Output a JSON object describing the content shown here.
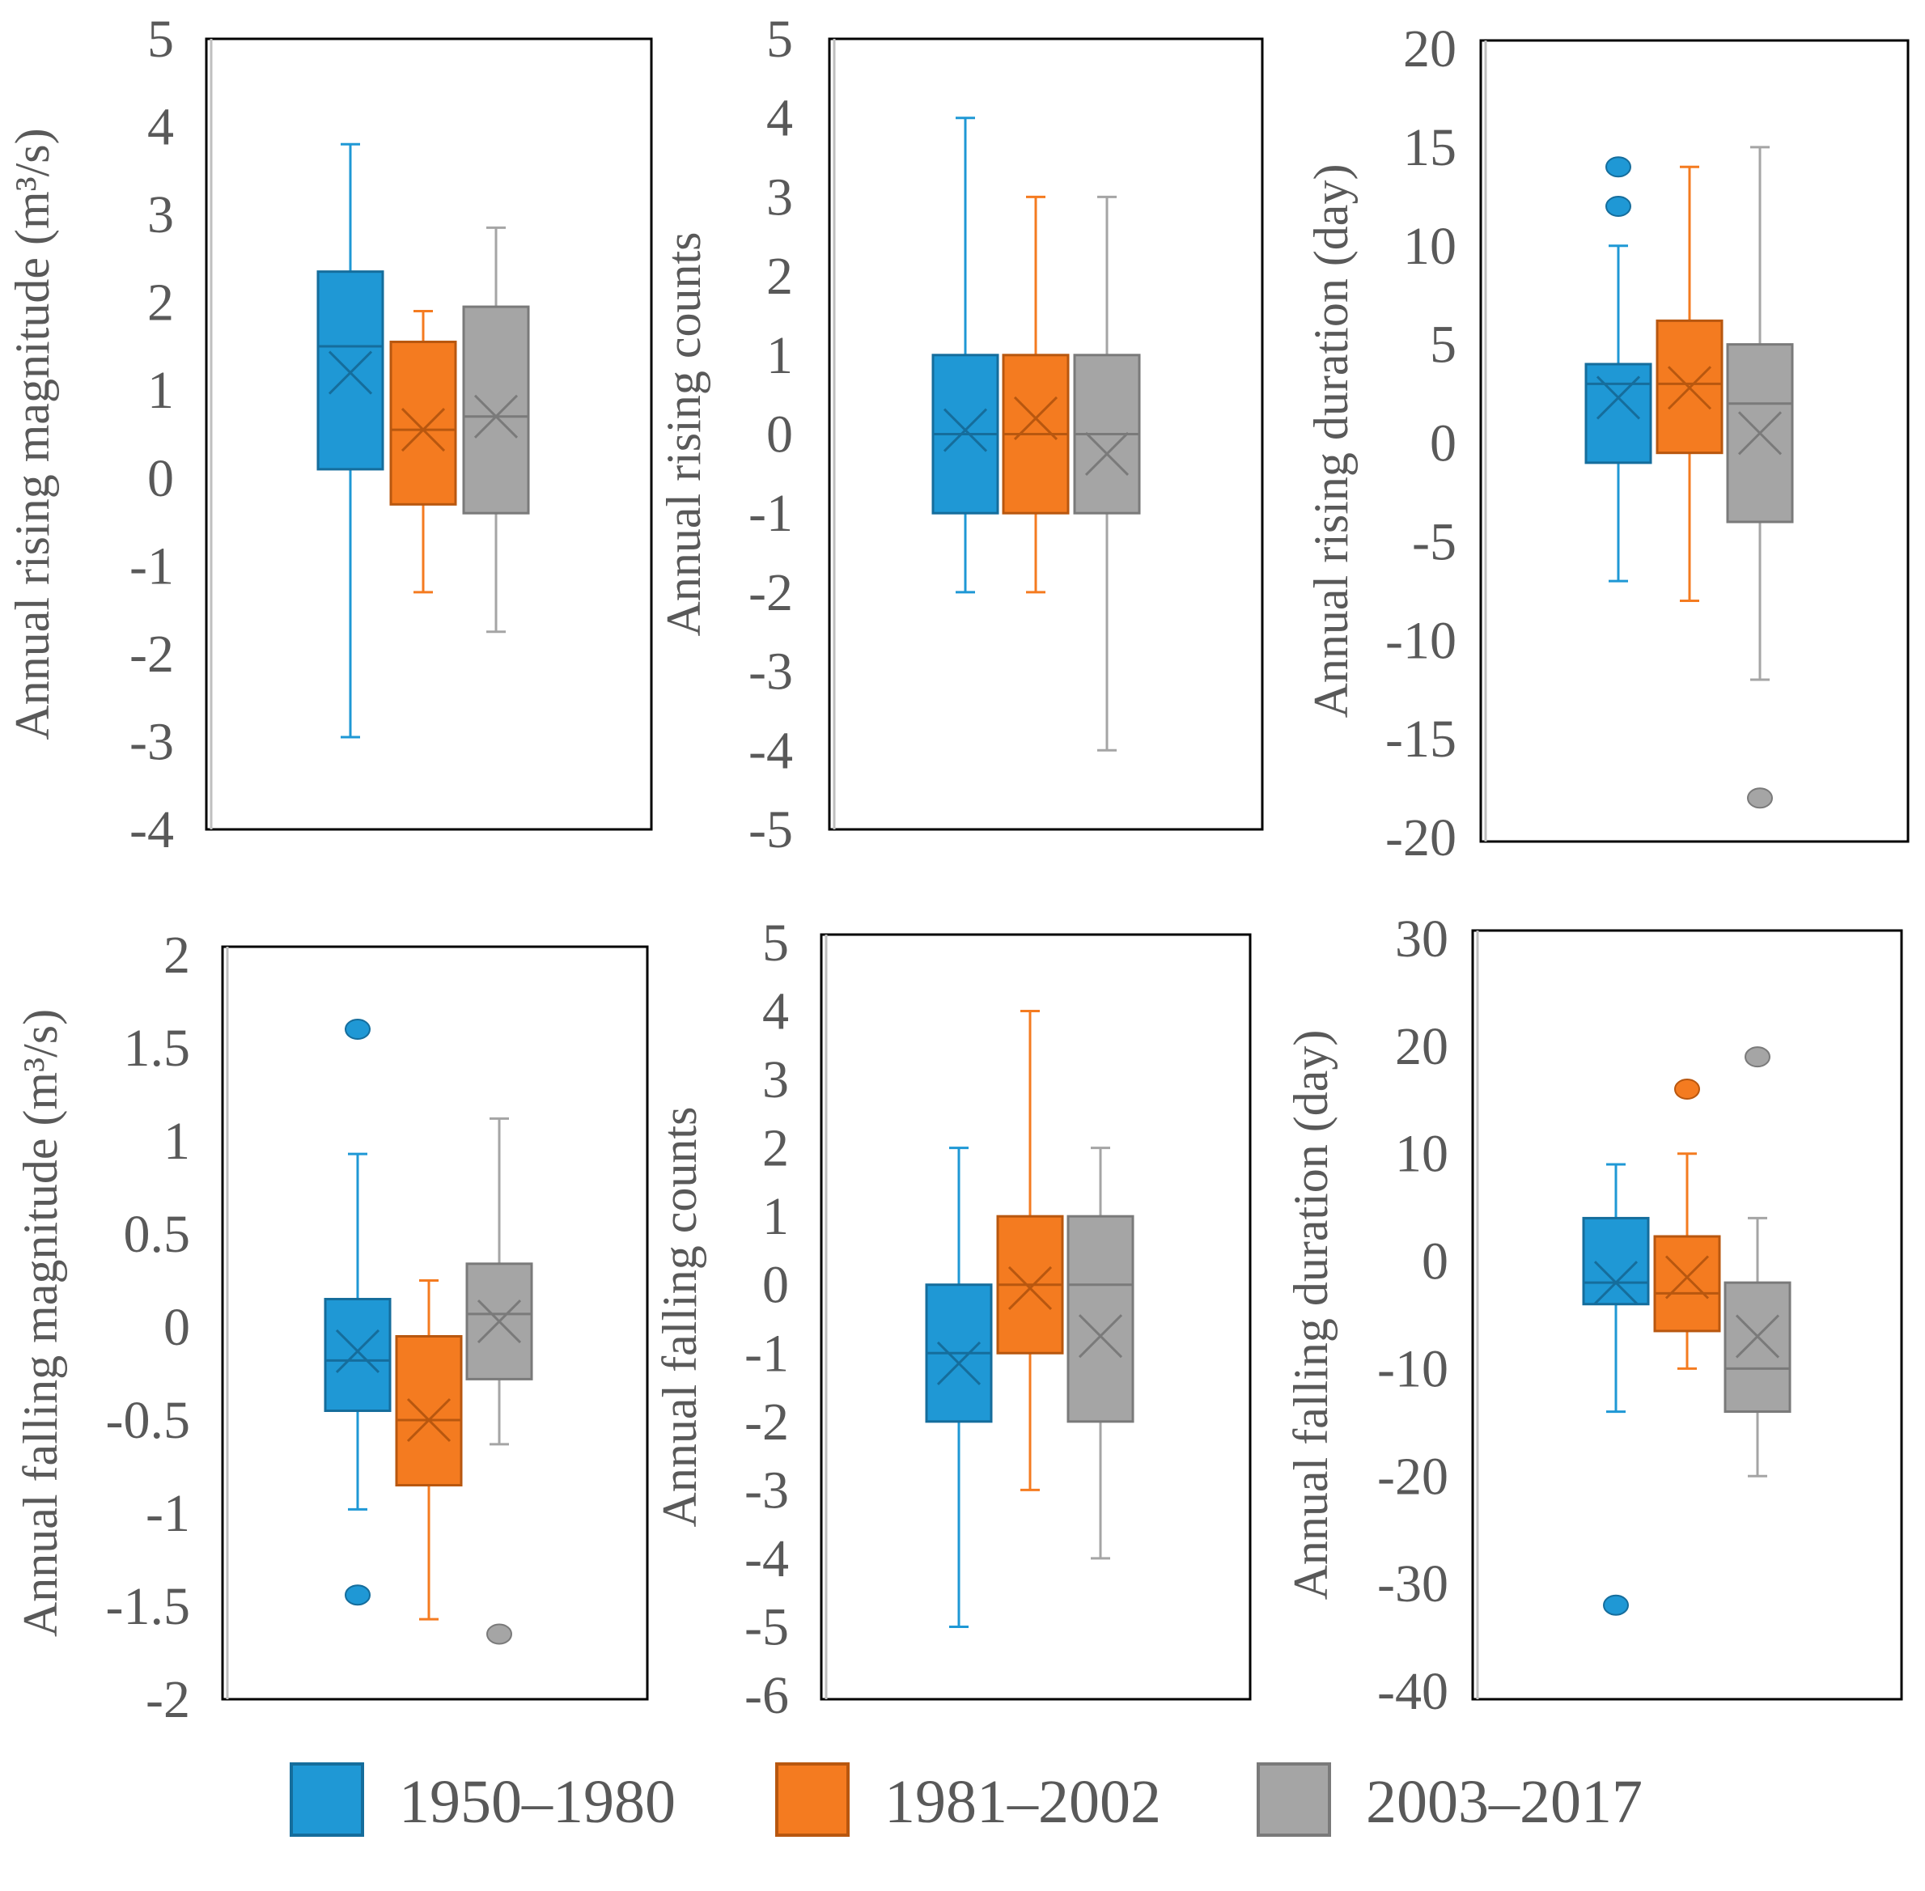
{
  "colors": {
    "1950–1980": "#1f98d5",
    "1981–2002": "#f47b20",
    "2003–2017": "#a5a5a5"
  },
  "legend": [
    "1950–1980",
    "1981–2002",
    "2003–2017"
  ],
  "chart_data": [
    {
      "type": "box",
      "ylabel": "Annual rising magnitude (m³/s)",
      "ylim": [
        -4,
        5
      ],
      "yticks": [
        "5",
        "4",
        "3",
        "2",
        "1",
        "0",
        "-1",
        "-2",
        "-3",
        "-4"
      ],
      "series": [
        {
          "name": "1950–1980",
          "min": -2.95,
          "q1": 0.1,
          "median": 1.5,
          "q3": 2.35,
          "max": 3.8,
          "mean": 1.2,
          "outliers": []
        },
        {
          "name": "1981–2002",
          "min": -1.3,
          "q1": -0.3,
          "median": 0.55,
          "q3": 1.55,
          "max": 1.9,
          "mean": 0.55,
          "outliers": []
        },
        {
          "name": "2003–2017",
          "min": -1.75,
          "q1": -0.4,
          "median": 0.7,
          "q3": 1.95,
          "max": 2.85,
          "mean": 0.7,
          "outliers": []
        }
      ]
    },
    {
      "type": "box",
      "ylabel": "Annual rising counts",
      "ylim": [
        -5,
        5
      ],
      "yticks": [
        "5",
        "4",
        "3",
        "2",
        "1",
        "0",
        "-1",
        "-2",
        "-3",
        "-4",
        "-5"
      ],
      "series": [
        {
          "name": "1950–1980",
          "min": -2,
          "q1": -1,
          "median": 0,
          "q3": 1,
          "max": 4,
          "mean": 0.05,
          "outliers": []
        },
        {
          "name": "1981–2002",
          "min": -2,
          "q1": -1,
          "median": 0,
          "q3": 1,
          "max": 3,
          "mean": 0.2,
          "outliers": []
        },
        {
          "name": "2003–2017",
          "min": -4,
          "q1": -1,
          "median": 0,
          "q3": 1,
          "max": 3,
          "mean": -0.25,
          "outliers": []
        }
      ]
    },
    {
      "type": "box",
      "ylabel": "Annual rising duration (day)",
      "ylim": [
        -20,
        20
      ],
      "yticks": [
        "20",
        "15",
        "10",
        "5",
        "0",
        "-5",
        "-10",
        "-15",
        "-20"
      ],
      "series": [
        {
          "name": "1950–1980",
          "min": -7,
          "q1": -1,
          "median": 3,
          "q3": 4,
          "max": 10,
          "mean": 2.3,
          "outliers": [
            14,
            12
          ]
        },
        {
          "name": "1981–2002",
          "min": -8,
          "q1": -0.5,
          "median": 3,
          "q3": 6.2,
          "max": 14,
          "mean": 2.8,
          "outliers": []
        },
        {
          "name": "2003–2017",
          "min": -12,
          "q1": -4,
          "median": 2,
          "q3": 5,
          "max": 15,
          "mean": 0.5,
          "outliers": [
            -18
          ]
        }
      ]
    },
    {
      "type": "box",
      "ylabel": "Annual falling magnitude (m³/s)",
      "ylim": [
        -2,
        2
      ],
      "yticks": [
        "2",
        "1.5",
        "1",
        "0.5",
        "0",
        "-0.5",
        "-1",
        "-1.5",
        "-2"
      ],
      "series": [
        {
          "name": "1950–1980",
          "min": -0.98,
          "q1": -0.45,
          "median": -0.18,
          "q3": 0.15,
          "max": 0.93,
          "mean": -0.13,
          "outliers": [
            1.6,
            -1.44
          ]
        },
        {
          "name": "1981–2002",
          "min": -1.57,
          "q1": -0.85,
          "median": -0.5,
          "q3": -0.05,
          "max": 0.25,
          "mean": -0.5,
          "outliers": []
        },
        {
          "name": "2003–2017",
          "min": -0.63,
          "q1": -0.28,
          "median": 0.07,
          "q3": 0.34,
          "max": 1.12,
          "mean": 0.03,
          "outliers": [
            -1.65
          ]
        }
      ]
    },
    {
      "type": "box",
      "ylabel": "Annual falling counts",
      "ylim": [
        -6,
        5
      ],
      "yticks": [
        "5",
        "4",
        "3",
        "2",
        "1",
        "0",
        "-1",
        "-2",
        "-3",
        "-4",
        "-5",
        "-6"
      ],
      "series": [
        {
          "name": "1950–1980",
          "min": -5,
          "q1": -2,
          "median": -1,
          "q3": 0,
          "max": 2,
          "mean": -1.15,
          "outliers": []
        },
        {
          "name": "1981–2002",
          "min": -3,
          "q1": -1,
          "median": 0,
          "q3": 1,
          "max": 4,
          "mean": -0.05,
          "outliers": []
        },
        {
          "name": "2003–2017",
          "min": -4,
          "q1": -2,
          "median": 0,
          "q3": 1,
          "max": 2,
          "mean": -0.75,
          "outliers": []
        }
      ]
    },
    {
      "type": "box",
      "ylabel": "Annual falling duration (day)",
      "ylim": [
        -40,
        30
      ],
      "yticks": [
        "30",
        "20",
        "10",
        "0",
        "-10",
        "-20",
        "-30",
        "-40"
      ],
      "series": [
        {
          "name": "1950–1980",
          "min": -14,
          "q1": -4,
          "median": -2,
          "q3": 4,
          "max": 9,
          "mean": -2,
          "outliers": [
            -32
          ]
        },
        {
          "name": "1981–2002",
          "min": -10,
          "q1": -6.5,
          "median": -3,
          "q3": 2.3,
          "max": 10,
          "mean": -1.5,
          "outliers": [
            16
          ]
        },
        {
          "name": "2003–2017",
          "min": -20,
          "q1": -14,
          "median": -10,
          "q3": -2,
          "max": 4,
          "mean": -7,
          "outliers": [
            19
          ]
        }
      ]
    }
  ]
}
